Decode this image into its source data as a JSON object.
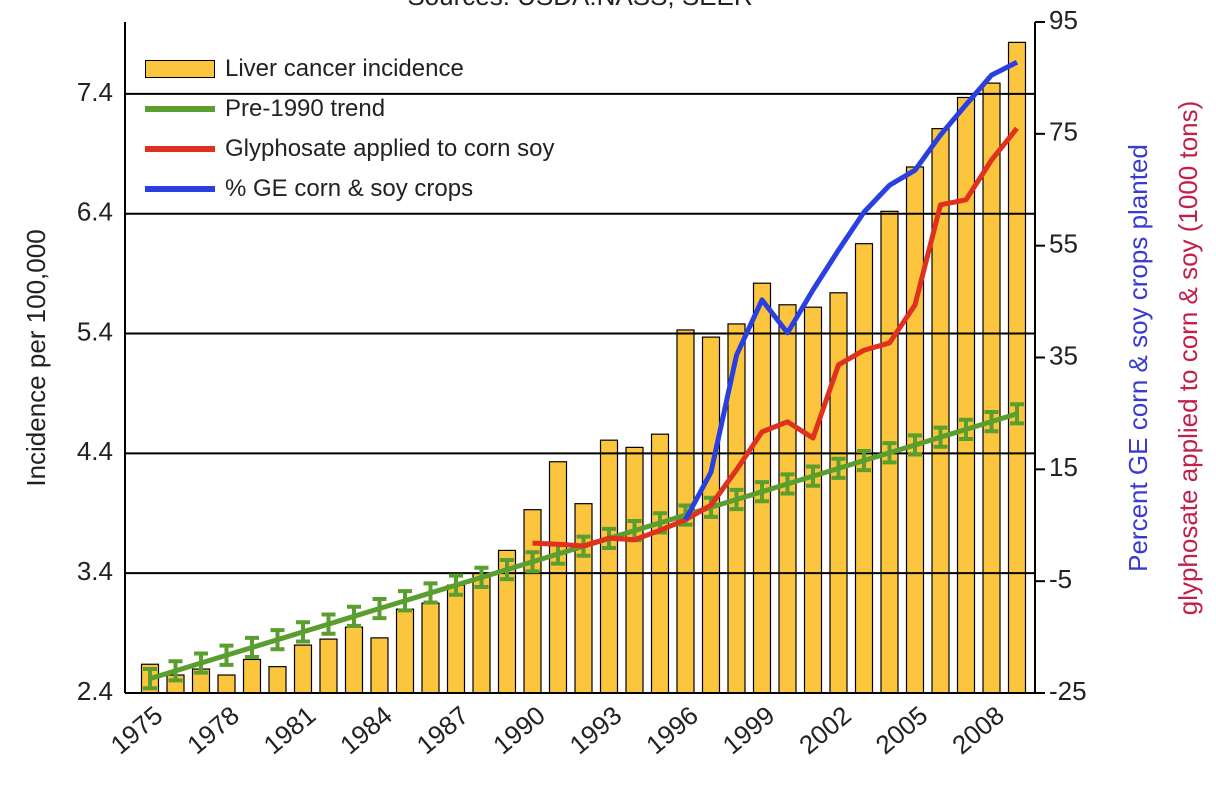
{
  "chart_data": {
    "type": "bar",
    "title": "Sources: USDA:NASS; SEER",
    "y_label": "Incidence per 100,000",
    "y2_labels": [
      {
        "text": "Percent GE corn & soy crops planted",
        "color": "#3a3ad0"
      },
      {
        "text": "glyphosate applied to corn & soy (1000 tons)",
        "color": "#c0204a"
      }
    ],
    "categories": [
      "1975",
      null,
      null,
      "1978",
      null,
      null,
      "1981",
      null,
      null,
      "1984",
      null,
      null,
      "1987",
      null,
      null,
      "1990",
      null,
      null,
      "1993",
      null,
      null,
      "1996",
      null,
      null,
      "1999",
      null,
      null,
      "2002",
      null,
      null,
      "2005",
      null,
      null,
      "2008",
      null
    ],
    "series": [
      {
        "name": "Liver cancer incidence",
        "type": "bar",
        "color": "#fbc63e",
        "values": [
          2.64,
          2.55,
          2.6,
          2.55,
          2.68,
          2.62,
          2.8,
          2.85,
          2.95,
          2.86,
          3.1,
          3.15,
          3.3,
          3.4,
          3.59,
          3.93,
          4.33,
          3.98,
          4.51,
          4.45,
          4.56,
          5.43,
          5.37,
          5.48,
          5.82,
          5.64,
          5.62,
          5.74,
          6.15,
          6.42,
          6.79,
          7.11,
          7.37,
          7.49,
          7.83
        ]
      },
      {
        "name": "Pre-1990 trend",
        "type": "errorline",
        "color": "#5a9e2f",
        "values": [
          2.52,
          2.585,
          2.65,
          2.715,
          2.78,
          2.845,
          2.91,
          2.975,
          3.04,
          3.105,
          3.17,
          3.235,
          3.3,
          3.365,
          3.43,
          3.495,
          3.56,
          3.625,
          3.69,
          3.755,
          3.82,
          3.885,
          3.95,
          4.015,
          4.08,
          4.145,
          4.21,
          4.275,
          4.34,
          4.405,
          4.47,
          4.535,
          4.6,
          4.665,
          4.73
        ],
        "errors": [
          0.08,
          0.08,
          0.08,
          0.08,
          0.08,
          0.08,
          0.08,
          0.08,
          0.08,
          0.08,
          0.08,
          0.08,
          0.08,
          0.08,
          0.08,
          0.08,
          0.08,
          0.08,
          0.08,
          0.08,
          0.08,
          0.08,
          0.08,
          0.08,
          0.08,
          0.08,
          0.08,
          0.08,
          0.08,
          0.08,
          0.08,
          0.08,
          0.08,
          0.08,
          0.08
        ]
      },
      {
        "name": "Glyphosate applied to corn soy",
        "type": "line",
        "axis": "y2",
        "color": "#e0301e",
        "values": [
          null,
          null,
          null,
          null,
          null,
          null,
          null,
          null,
          null,
          null,
          null,
          null,
          null,
          null,
          null,
          1.8,
          1.6,
          1.3,
          2.7,
          2.4,
          4.1,
          6,
          8.6,
          14.9,
          21.7,
          23.5,
          20.6,
          33.7,
          36.3,
          37.6,
          44.4,
          62.3,
          63.2,
          70.3,
          76
        ]
      },
      {
        "name": "% GE corn & soy crops",
        "type": "line",
        "axis": "y2",
        "color": "#2a3fe0",
        "values": [
          null,
          null,
          null,
          null,
          null,
          null,
          null,
          null,
          null,
          null,
          null,
          null,
          null,
          null,
          null,
          null,
          null,
          null,
          null,
          null,
          null,
          6,
          14.5,
          35.4,
          45.3,
          39.4,
          47.1,
          54.2,
          61,
          65.8,
          68.5,
          74.8,
          80.2,
          85.5,
          87.8
        ]
      }
    ],
    "ylim": [
      2.4,
      8.0
    ],
    "yticks": [
      2.4,
      3.4,
      4.4,
      5.4,
      6.4,
      7.4
    ],
    "y2lim": [
      -25,
      95
    ],
    "y2ticks": [
      -25,
      -5,
      15,
      35,
      55,
      75,
      95
    ],
    "grid": true,
    "legend": "upper left"
  }
}
